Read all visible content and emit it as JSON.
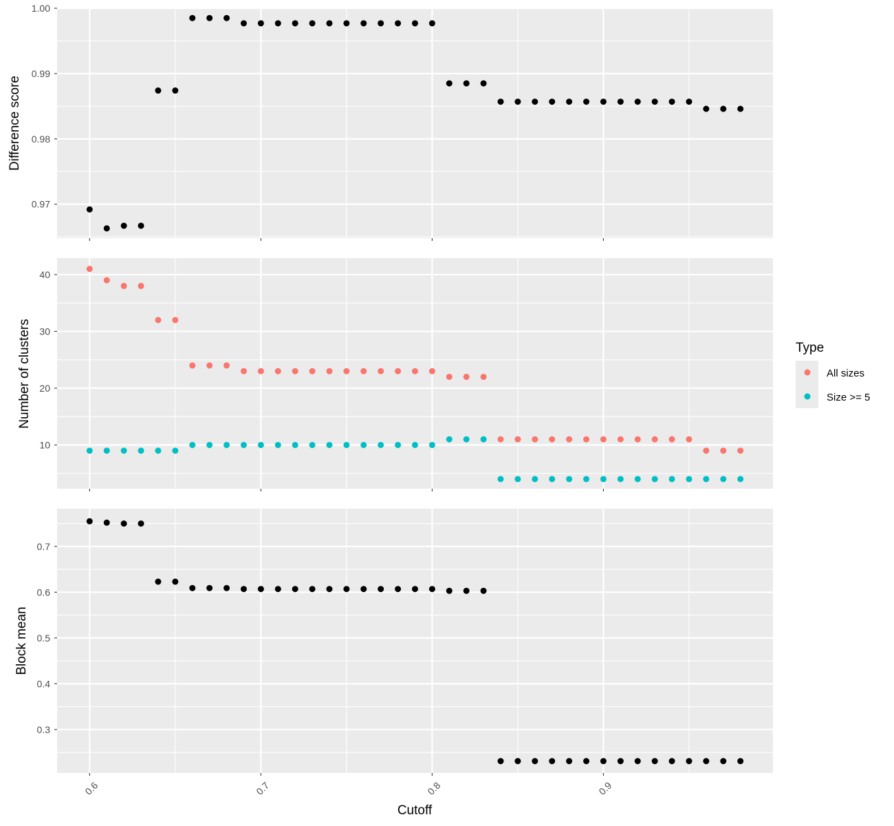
{
  "chart_data": {
    "type": "scatter",
    "xlabel": "Cutoff",
    "x_ticks": [
      0.6,
      0.7,
      0.8,
      0.9
    ],
    "x_tick_labels": [
      "0.6",
      "0.7",
      "0.8",
      "0.9"
    ],
    "xlim": [
      0.581,
      0.999
    ],
    "x": [
      0.6,
      0.61,
      0.62,
      0.63,
      0.64,
      0.65,
      0.66,
      0.67,
      0.68,
      0.69,
      0.7,
      0.71,
      0.72,
      0.73,
      0.74,
      0.75,
      0.76,
      0.77,
      0.78,
      0.79,
      0.8,
      0.81,
      0.82,
      0.83,
      0.84,
      0.85,
      0.86,
      0.87,
      0.88,
      0.89,
      0.9,
      0.91,
      0.92,
      0.93,
      0.94,
      0.95,
      0.96,
      0.97,
      0.98
    ],
    "grid": true,
    "background": "#ebebeb",
    "gridline_color": "#ffffff",
    "panels": [
      {
        "ylabel": "Difference score",
        "ylim": [
          0.9648,
          1.0
        ],
        "y_ticks": [
          0.97,
          0.98,
          0.99,
          1.0
        ],
        "y_tick_labels": [
          "0.97",
          "0.98",
          "0.99",
          "1.00"
        ],
        "series": [
          {
            "color": "#000000",
            "values": [
              0.9692,
              0.9663,
              0.9667,
              0.9667,
              0.9874,
              0.9874,
              0.9985,
              0.9985,
              0.9985,
              0.9977,
              0.9977,
              0.9977,
              0.9977,
              0.9977,
              0.9977,
              0.9977,
              0.9977,
              0.9977,
              0.9977,
              0.9977,
              0.9977,
              0.9885,
              0.9885,
              0.9885,
              0.9857,
              0.9857,
              0.9857,
              0.9857,
              0.9857,
              0.9857,
              0.9857,
              0.9857,
              0.9857,
              0.9857,
              0.9857,
              0.9857,
              0.9846,
              0.9846,
              0.9846
            ]
          }
        ]
      },
      {
        "ylabel": "Number of clusters",
        "ylim": [
          2.3,
          42.9
        ],
        "y_ticks": [
          10,
          20,
          30,
          40
        ],
        "y_tick_labels": [
          "10",
          "20",
          "30",
          "40"
        ],
        "series": [
          {
            "name": "All sizes",
            "color": "#f8766d",
            "values": [
              41,
              39,
              38,
              38,
              32,
              32,
              24,
              24,
              24,
              23,
              23,
              23,
              23,
              23,
              23,
              23,
              23,
              23,
              23,
              23,
              23,
              22,
              22,
              22,
              11,
              11,
              11,
              11,
              11,
              11,
              11,
              11,
              11,
              11,
              11,
              11,
              9,
              9,
              9
            ]
          },
          {
            "name": "Size >= 5",
            "color": "#00bfc4",
            "values": [
              9,
              9,
              9,
              9,
              9,
              9,
              10,
              10,
              10,
              10,
              10,
              10,
              10,
              10,
              10,
              10,
              10,
              10,
              10,
              10,
              10,
              11,
              11,
              11,
              4,
              4,
              4,
              4,
              4,
              4,
              4,
              4,
              4,
              4,
              4,
              4,
              4,
              4,
              4
            ]
          }
        ]
      },
      {
        "ylabel": "Block mean",
        "ylim": [
          0.205,
          0.7825
        ],
        "y_ticks": [
          0.3,
          0.4,
          0.5,
          0.6,
          0.7
        ],
        "y_tick_labels": [
          "0.3",
          "0.4",
          "0.5",
          "0.6",
          "0.7"
        ],
        "series": [
          {
            "color": "#000000",
            "values": [
              0.755,
              0.752,
              0.75,
              0.75,
              0.623,
              0.623,
              0.609,
              0.609,
              0.609,
              0.607,
              0.607,
              0.607,
              0.607,
              0.607,
              0.607,
              0.607,
              0.607,
              0.607,
              0.607,
              0.607,
              0.607,
              0.603,
              0.603,
              0.603,
              0.231,
              0.231,
              0.231,
              0.231,
              0.231,
              0.231,
              0.231,
              0.231,
              0.231,
              0.231,
              0.231,
              0.231,
              0.231,
              0.231,
              0.231
            ]
          }
        ]
      }
    ],
    "legend": {
      "title": "Type",
      "position": "right",
      "entries": [
        {
          "label": "All sizes",
          "color": "#f8766d"
        },
        {
          "label": "Size >= 5",
          "color": "#00bfc4"
        }
      ]
    }
  }
}
